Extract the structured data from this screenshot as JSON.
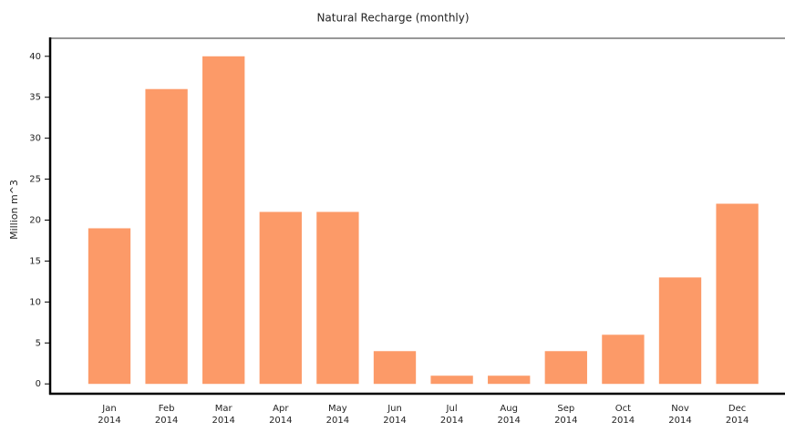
{
  "chart_data": {
    "type": "bar",
    "title": "Natural Recharge (monthly)",
    "y_label": "Million m^3",
    "categories": [
      "Jan\n2014",
      "Feb\n2014",
      "Mar\n2014",
      "Apr\n2014",
      "May\n2014",
      "Jun\n2014",
      "Jul\n2014",
      "Aug\n2014",
      "Sep\n2014",
      "Oct\n2014",
      "Nov\n2014",
      "Dec\n2014"
    ],
    "values": [
      19,
      36,
      40,
      21,
      21,
      4,
      1,
      1,
      4,
      6,
      13,
      22
    ],
    "color": "#fc9a68",
    "ylim": [
      -1.2,
      42.2
    ],
    "yticks": [
      0,
      5,
      10,
      15,
      20,
      25,
      30,
      35,
      40
    ],
    "grid": false
  }
}
